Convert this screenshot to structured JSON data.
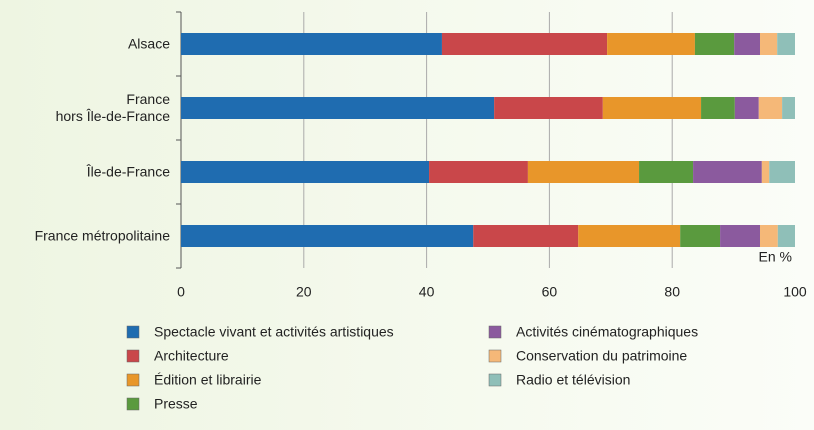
{
  "chart_data": {
    "type": "stacked_barh",
    "categories": [
      "Alsace",
      "France\nhors Île-de-France",
      "Île-de-France",
      "France métropolitaine"
    ],
    "series": [
      {
        "name": "Spectacle vivant et activités artistiques",
        "color": "#1f6cb0",
        "values": [
          42.5,
          51.0,
          40.4,
          47.6
        ]
      },
      {
        "name": "Architecture",
        "color": "#c9474a",
        "values": [
          26.9,
          17.7,
          16.1,
          17.1
        ]
      },
      {
        "name": "Édition et librairie",
        "color": "#e8962a",
        "values": [
          14.3,
          16.0,
          18.1,
          16.6
        ]
      },
      {
        "name": "Presse",
        "color": "#5a9a3e",
        "values": [
          6.4,
          5.5,
          8.8,
          6.5
        ]
      },
      {
        "name": "Activités cinématographiques",
        "color": "#8b5a9e",
        "values": [
          4.2,
          3.9,
          11.2,
          6.5
        ]
      },
      {
        "name": "Conservation du patrimoine",
        "color": "#f5b878",
        "values": [
          2.8,
          3.8,
          1.2,
          2.9
        ]
      },
      {
        "name": "Radio et télévision",
        "color": "#8fbfb8",
        "values": [
          2.9,
          2.1,
          4.2,
          2.8
        ]
      }
    ],
    "xlim": [
      0,
      100
    ],
    "xticks": [
      0,
      20,
      40,
      60,
      80,
      100
    ],
    "grid": true,
    "annotation": "En %"
  }
}
